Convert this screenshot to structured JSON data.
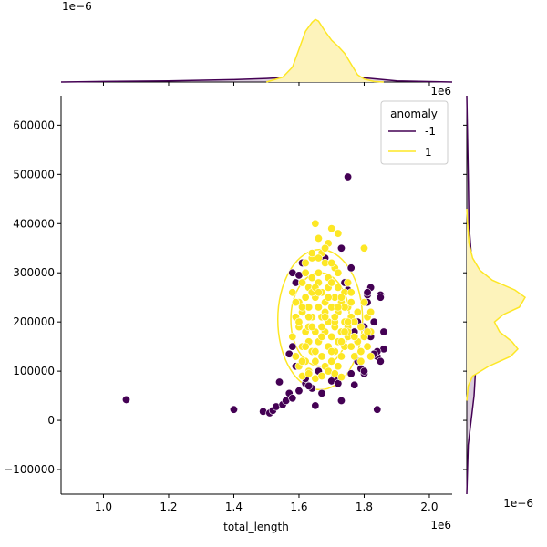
{
  "chart_data": {
    "type": "scatter",
    "variant": "jointplot-with-kde-marginals",
    "xlabel": "total_length",
    "ylabel": "",
    "x_offset_label": "1e6",
    "y_offset_label": "",
    "top_marginal_offset_label": "1e−6",
    "right_marginal_offset_label": "1e−6",
    "xlim": [
      0.87,
      2.07
    ],
    "ylim": [
      -150000,
      660000
    ],
    "x_ticks": [
      1.0,
      1.2,
      1.4,
      1.6,
      1.8,
      2.0
    ],
    "x_tick_labels": [
      "1.0",
      "1.2",
      "1.4",
      "1.6",
      "1.8",
      "2.0"
    ],
    "y_ticks": [
      -100000,
      0,
      100000,
      200000,
      300000,
      400000,
      500000,
      600000
    ],
    "y_tick_labels": [
      "−100000",
      "0",
      "100000",
      "200000",
      "300000",
      "400000",
      "500000",
      "600000"
    ],
    "grid": false,
    "legend": {
      "title": "anomaly",
      "placement": "top-right",
      "entries": [
        {
          "label": "-1",
          "color": "#440154"
        },
        {
          "label": "1",
          "color": "#fde725"
        }
      ]
    },
    "colors": {
      "anomaly": "#440154",
      "normal": "#fde725",
      "normal_fill": "#fdf3bb"
    },
    "series": [
      {
        "name": "-1",
        "x": [
          1.07,
          1.4,
          1.49,
          1.51,
          1.52,
          1.53,
          1.54,
          1.55,
          1.56,
          1.57,
          1.58,
          1.6,
          1.62,
          1.62,
          1.64,
          1.65,
          1.66,
          1.67,
          1.71,
          1.72,
          1.73,
          1.75,
          1.76,
          1.78,
          1.79,
          1.8,
          1.8,
          1.81,
          1.82,
          1.82,
          1.84,
          1.84,
          1.85,
          1.85,
          1.86,
          1.86,
          1.83,
          1.84,
          1.58,
          1.59,
          1.6,
          1.61,
          1.74,
          1.75,
          1.76,
          1.77,
          1.8,
          1.81,
          1.83,
          1.85,
          1.57,
          1.58,
          1.59,
          1.63,
          1.68,
          1.7,
          1.72,
          1.73,
          1.81,
          1.78,
          1.77
        ],
        "y": [
          42000,
          22000,
          18000,
          15000,
          20000,
          28000,
          78000,
          32000,
          40000,
          55000,
          45000,
          60000,
          75000,
          85000,
          65000,
          30000,
          100000,
          55000,
          90000,
          85000,
          40000,
          495000,
          310000,
          120000,
          105000,
          95000,
          190000,
          255000,
          270000,
          170000,
          130000,
          22000,
          255000,
          250000,
          180000,
          145000,
          200000,
          140000,
          300000,
          280000,
          295000,
          320000,
          280000,
          265000,
          95000,
          72000,
          100000,
          260000,
          135000,
          120000,
          135000,
          150000,
          110000,
          70000,
          330000,
          80000,
          75000,
          350000,
          240000,
          200000,
          180000
        ]
      },
      {
        "name": "1",
        "x": [
          1.58,
          1.58,
          1.59,
          1.59,
          1.6,
          1.6,
          1.6,
          1.61,
          1.61,
          1.61,
          1.62,
          1.62,
          1.62,
          1.62,
          1.63,
          1.63,
          1.63,
          1.63,
          1.64,
          1.64,
          1.64,
          1.64,
          1.65,
          1.65,
          1.65,
          1.65,
          1.66,
          1.66,
          1.66,
          1.66,
          1.67,
          1.67,
          1.67,
          1.67,
          1.68,
          1.68,
          1.68,
          1.68,
          1.69,
          1.69,
          1.69,
          1.69,
          1.7,
          1.7,
          1.7,
          1.7,
          1.71,
          1.71,
          1.71,
          1.71,
          1.72,
          1.72,
          1.72,
          1.72,
          1.73,
          1.73,
          1.73,
          1.74,
          1.74,
          1.74,
          1.75,
          1.75,
          1.75,
          1.76,
          1.76,
          1.76,
          1.77,
          1.77,
          1.78,
          1.78,
          1.79,
          1.79,
          1.8,
          1.8,
          1.81,
          1.81,
          1.82,
          1.82,
          1.59,
          1.6,
          1.61,
          1.62,
          1.63,
          1.64,
          1.65,
          1.66,
          1.67,
          1.68,
          1.69,
          1.7,
          1.71,
          1.72,
          1.73,
          1.74,
          1.75,
          1.76,
          1.61,
          1.63,
          1.65,
          1.67,
          1.69,
          1.71,
          1.73,
          1.66,
          1.7,
          1.68,
          1.64,
          1.72,
          1.62,
          1.75,
          1.79,
          1.8,
          1.81,
          1.82,
          1.6,
          1.61,
          1.63,
          1.65,
          1.67,
          1.69,
          1.71,
          1.73,
          1.75,
          1.77,
          1.64,
          1.66,
          1.68,
          1.7,
          1.72,
          1.74
        ],
        "y": [
          260000,
          170000,
          210000,
          130000,
          240000,
          190000,
          110000,
          280000,
          150000,
          220000,
          250000,
          180000,
          120000,
          300000,
          230000,
          160000,
          270000,
          100000,
          210000,
          140000,
          290000,
          330000,
          250000,
          180000,
          120000,
          400000,
          230000,
          160000,
          280000,
          370000,
          210000,
          130000,
          260000,
          340000,
          240000,
          180000,
          110000,
          320000,
          200000,
          150000,
          270000,
          360000,
          230000,
          170000,
          120000,
          390000,
          250000,
          190000,
          140000,
          310000,
          220000,
          160000,
          110000,
          380000,
          240000,
          180000,
          130000,
          260000,
          200000,
          150000,
          230000,
          170000,
          280000,
          210000,
          150000,
          240000,
          200000,
          130000,
          220000,
          160000,
          190000,
          140000,
          350000,
          170000,
          210000,
          150000,
          180000,
          130000,
          240000,
          200000,
          230000,
          150000,
          190000,
          260000,
          140000,
          300000,
          170000,
          220000,
          290000,
          140000,
          200000,
          270000,
          160000,
          230000,
          190000,
          260000,
          90000,
          95000,
          85000,
          90000,
          100000,
          95000,
          88000,
          330000,
          320000,
          350000,
          340000,
          300000,
          320000,
          180000,
          120000,
          240000,
          180000,
          220000,
          200000,
          120000,
          210000,
          270000,
          190000,
          250000,
          210000,
          250000,
          200000,
          170000,
          190000,
          260000,
          210000,
          280000,
          230000,
          180000
        ]
      }
    ],
    "marginal_x": {
      "orientation": "top",
      "series": [
        {
          "name": "-1",
          "x": [
            0.87,
            1.0,
            1.2,
            1.4,
            1.5,
            1.6,
            1.7,
            1.8,
            1.9,
            2.07
          ],
          "density": [
            0,
            0.01,
            0.02,
            0.04,
            0.06,
            0.09,
            0.1,
            0.07,
            0.02,
            0
          ]
        },
        {
          "name": "1",
          "x": [
            1.5,
            1.55,
            1.58,
            1.6,
            1.62,
            1.64,
            1.65,
            1.66,
            1.68,
            1.7,
            1.72,
            1.74,
            1.76,
            1.78,
            1.8,
            1.83,
            1.86
          ],
          "density": [
            0,
            0.08,
            0.25,
            0.55,
            0.85,
            1.0,
            1.05,
            1.02,
            0.85,
            0.7,
            0.6,
            0.48,
            0.3,
            0.12,
            0.05,
            0.01,
            0
          ]
        }
      ]
    },
    "marginal_y": {
      "orientation": "right",
      "series": [
        {
          "name": "-1",
          "y": [
            -150000,
            -50000,
            0,
            50000,
            100000,
            150000,
            200000,
            250000,
            300000,
            400000,
            500000,
            660000
          ],
          "density": [
            0,
            0.02,
            0.06,
            0.1,
            0.12,
            0.13,
            0.12,
            0.11,
            0.08,
            0.03,
            0.02,
            0
          ]
        },
        {
          "name": "1",
          "y": [
            40000,
            70000,
            90000,
            110000,
            130000,
            145000,
            160000,
            180000,
            200000,
            215000,
            230000,
            250000,
            265000,
            285000,
            305000,
            330000,
            360000,
            400000,
            430000
          ],
          "density": [
            0,
            0.02,
            0.08,
            0.3,
            0.6,
            0.7,
            0.62,
            0.45,
            0.38,
            0.5,
            0.72,
            0.8,
            0.66,
            0.35,
            0.18,
            0.08,
            0.03,
            0.01,
            0
          ]
        }
      ]
    }
  }
}
